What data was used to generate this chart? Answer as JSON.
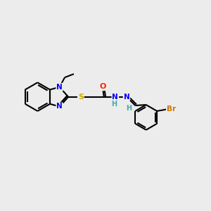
{
  "background_color": "#ececec",
  "atom_colors": {
    "C": "#000000",
    "N": "#0000ff",
    "S": "#ccaa00",
    "O": "#ff2200",
    "Br": "#cc7700",
    "H": "#44aaaa"
  },
  "bond_color": "#000000",
  "bond_width": 1.5,
  "figsize": [
    3.0,
    3.0
  ],
  "dpi": 100
}
